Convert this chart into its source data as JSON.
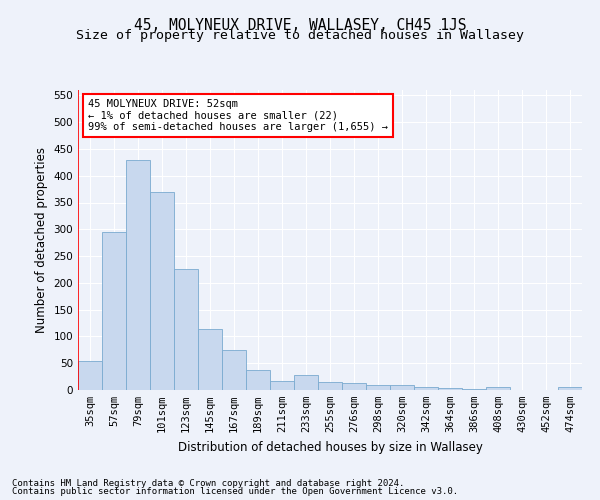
{
  "title": "45, MOLYNEUX DRIVE, WALLASEY, CH45 1JS",
  "subtitle": "Size of property relative to detached houses in Wallasey",
  "xlabel": "Distribution of detached houses by size in Wallasey",
  "ylabel": "Number of detached properties",
  "categories": [
    "35sqm",
    "57sqm",
    "79sqm",
    "101sqm",
    "123sqm",
    "145sqm",
    "167sqm",
    "189sqm",
    "211sqm",
    "233sqm",
    "255sqm",
    "276sqm",
    "298sqm",
    "320sqm",
    "342sqm",
    "364sqm",
    "386sqm",
    "408sqm",
    "430sqm",
    "452sqm",
    "474sqm"
  ],
  "values": [
    55,
    295,
    430,
    370,
    225,
    113,
    75,
    38,
    17,
    28,
    15,
    13,
    10,
    10,
    5,
    4,
    2,
    6,
    0,
    0,
    5
  ],
  "bar_color": "#c8d8ee",
  "bar_edge_color": "#7aaad0",
  "ylim": [
    0,
    560
  ],
  "yticks": [
    0,
    50,
    100,
    150,
    200,
    250,
    300,
    350,
    400,
    450,
    500,
    550
  ],
  "annotation_box_text": "45 MOLYNEUX DRIVE: 52sqm\n← 1% of detached houses are smaller (22)\n99% of semi-detached houses are larger (1,655) →",
  "footnote_line1": "Contains HM Land Registry data © Crown copyright and database right 2024.",
  "footnote_line2": "Contains public sector information licensed under the Open Government Licence v3.0.",
  "background_color": "#eef2fa",
  "grid_color": "#ffffff",
  "title_fontsize": 10.5,
  "subtitle_fontsize": 9.5,
  "axis_label_fontsize": 8.5,
  "tick_fontsize": 7.5,
  "footnote_fontsize": 6.5
}
